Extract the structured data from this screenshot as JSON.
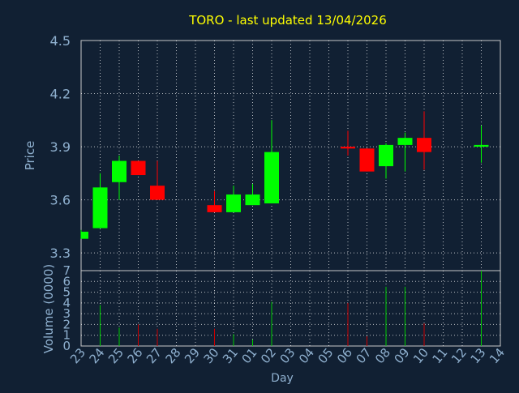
{
  "chart_data": {
    "type": "candlestick",
    "title": "TORO - last updated 13/04/2026",
    "xlabel": "Day",
    "price_panel": {
      "ylabel": "Price",
      "ylim": [
        3.2,
        4.5
      ],
      "yticks": [
        "3.3",
        "3.6",
        "3.9",
        "4.2",
        "4.5"
      ],
      "grid": true
    },
    "volume_panel": {
      "ylabel": "Volume (0000)",
      "ylim": [
        0,
        7
      ],
      "yticks": [
        "0",
        "1",
        "2",
        "3",
        "4",
        "5",
        "6",
        "7"
      ],
      "grid": true
    },
    "x_tick_labels": [
      "23",
      "24",
      "25",
      "26",
      "27",
      "28",
      "29",
      "30",
      "31",
      "01",
      "02",
      "03",
      "04",
      "05",
      "06",
      "07",
      "08",
      "09",
      "10",
      "11",
      "12",
      "13",
      "14"
    ],
    "candles": [
      {
        "day": "23",
        "open": 3.38,
        "high": 3.43,
        "low": 3.38,
        "close": 3.42,
        "volume": 0
      },
      {
        "day": "24",
        "open": 3.44,
        "high": 3.75,
        "low": 3.44,
        "close": 3.67,
        "volume": 3.8
      },
      {
        "day": "25",
        "open": 3.7,
        "high": 3.85,
        "low": 3.6,
        "close": 3.82,
        "volume": 1.7
      },
      {
        "day": "26",
        "open": 3.82,
        "high": 3.82,
        "low": 3.74,
        "close": 3.74,
        "volume": 2.0
      },
      {
        "day": "27",
        "open": 3.68,
        "high": 3.82,
        "low": 3.6,
        "close": 3.6,
        "volume": 1.6
      },
      {
        "day": "30",
        "open": 3.57,
        "high": 3.65,
        "low": 3.53,
        "close": 3.53,
        "volume": 1.6
      },
      {
        "day": "31",
        "open": 3.53,
        "high": 3.68,
        "low": 3.53,
        "close": 3.63,
        "volume": 1.1
      },
      {
        "day": "01",
        "open": 3.57,
        "high": 3.69,
        "low": 3.57,
        "close": 3.63,
        "volume": 0.6
      },
      {
        "day": "02",
        "open": 3.58,
        "high": 4.05,
        "low": 3.58,
        "close": 3.87,
        "volume": 4.1
      },
      {
        "day": "06",
        "open": 3.9,
        "high": 3.99,
        "low": 3.85,
        "close": 3.89,
        "volume": 4.0
      },
      {
        "day": "07",
        "open": 3.89,
        "high": 3.89,
        "low": 3.76,
        "close": 3.76,
        "volume": 0.9
      },
      {
        "day": "08",
        "open": 3.79,
        "high": 3.92,
        "low": 3.72,
        "close": 3.91,
        "volume": 5.5
      },
      {
        "day": "09",
        "open": 3.91,
        "high": 3.98,
        "low": 3.76,
        "close": 3.95,
        "volume": 5.5
      },
      {
        "day": "10",
        "open": 3.95,
        "high": 4.1,
        "low": 3.77,
        "close": 3.87,
        "volume": 2.1
      },
      {
        "day": "13",
        "open": 3.9,
        "high": 4.02,
        "low": 3.81,
        "close": 3.91,
        "volume": 7.0
      }
    ],
    "colors": {
      "background": "#112033",
      "grid": "#ffffff",
      "axis_text": "#8fb0cf",
      "title": "#ffff00",
      "up": "#00ff00",
      "down": "#ff0000",
      "up_volume": "#00cc00",
      "down_volume": "#cc0000",
      "frame": "#c8c8c8"
    }
  }
}
